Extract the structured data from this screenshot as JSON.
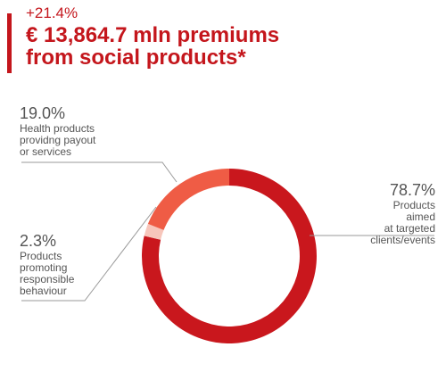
{
  "header": {
    "growth": "+21.4%",
    "title_line1": "€ 13,864.7 mln premiums",
    "title_line2": "from social products*",
    "accent_color": "#c4161c"
  },
  "chart_data": {
    "type": "pie",
    "donut": true,
    "unit": "%",
    "series": [
      {
        "value": 78.7,
        "label": "78.7%",
        "description": "Products\naimed\nat targeted\nclients/events",
        "color": "#c9171d"
      },
      {
        "value": 2.3,
        "label": "2.3%",
        "description": "Products\npromoting\nresponsible\nbehaviour",
        "color": "#f7c6bb"
      },
      {
        "value": 19.0,
        "label": "19.0%",
        "description": "Health products\nprovidng payout\nor services",
        "color": "#ef5c45"
      }
    ]
  }
}
